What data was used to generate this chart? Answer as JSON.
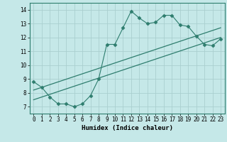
{
  "xlabel": "Humidex (Indice chaleur)",
  "bg_color": "#c5e8e8",
  "grid_color": "#aacfcf",
  "line_color": "#2e7d6e",
  "marker": "D",
  "marker_size": 2.5,
  "xlim": [
    -0.5,
    23.5
  ],
  "ylim": [
    6.5,
    14.5
  ],
  "xticks": [
    0,
    1,
    2,
    3,
    4,
    5,
    6,
    7,
    8,
    9,
    10,
    11,
    12,
    13,
    14,
    15,
    16,
    17,
    18,
    19,
    20,
    21,
    22,
    23
  ],
  "yticks": [
    7,
    8,
    9,
    10,
    11,
    12,
    13,
    14
  ],
  "series": [
    {
      "x": [
        0,
        1,
        2,
        3,
        4,
        5,
        6,
        7,
        8,
        9,
        10,
        11,
        12,
        13,
        14,
        15,
        16,
        17,
        18,
        19,
        20,
        21,
        22,
        23
      ],
      "y": [
        8.8,
        8.4,
        7.7,
        7.2,
        7.2,
        7.0,
        7.2,
        7.8,
        9.0,
        11.5,
        11.5,
        12.7,
        13.9,
        13.4,
        13.0,
        13.1,
        13.6,
        13.6,
        12.9,
        12.8,
        12.1,
        11.5,
        11.4,
        11.9
      ],
      "with_markers": true
    },
    {
      "x": [
        0,
        23
      ],
      "y": [
        8.2,
        12.7
      ],
      "with_markers": false
    },
    {
      "x": [
        0,
        23
      ],
      "y": [
        7.5,
        12.0
      ],
      "with_markers": false
    }
  ]
}
